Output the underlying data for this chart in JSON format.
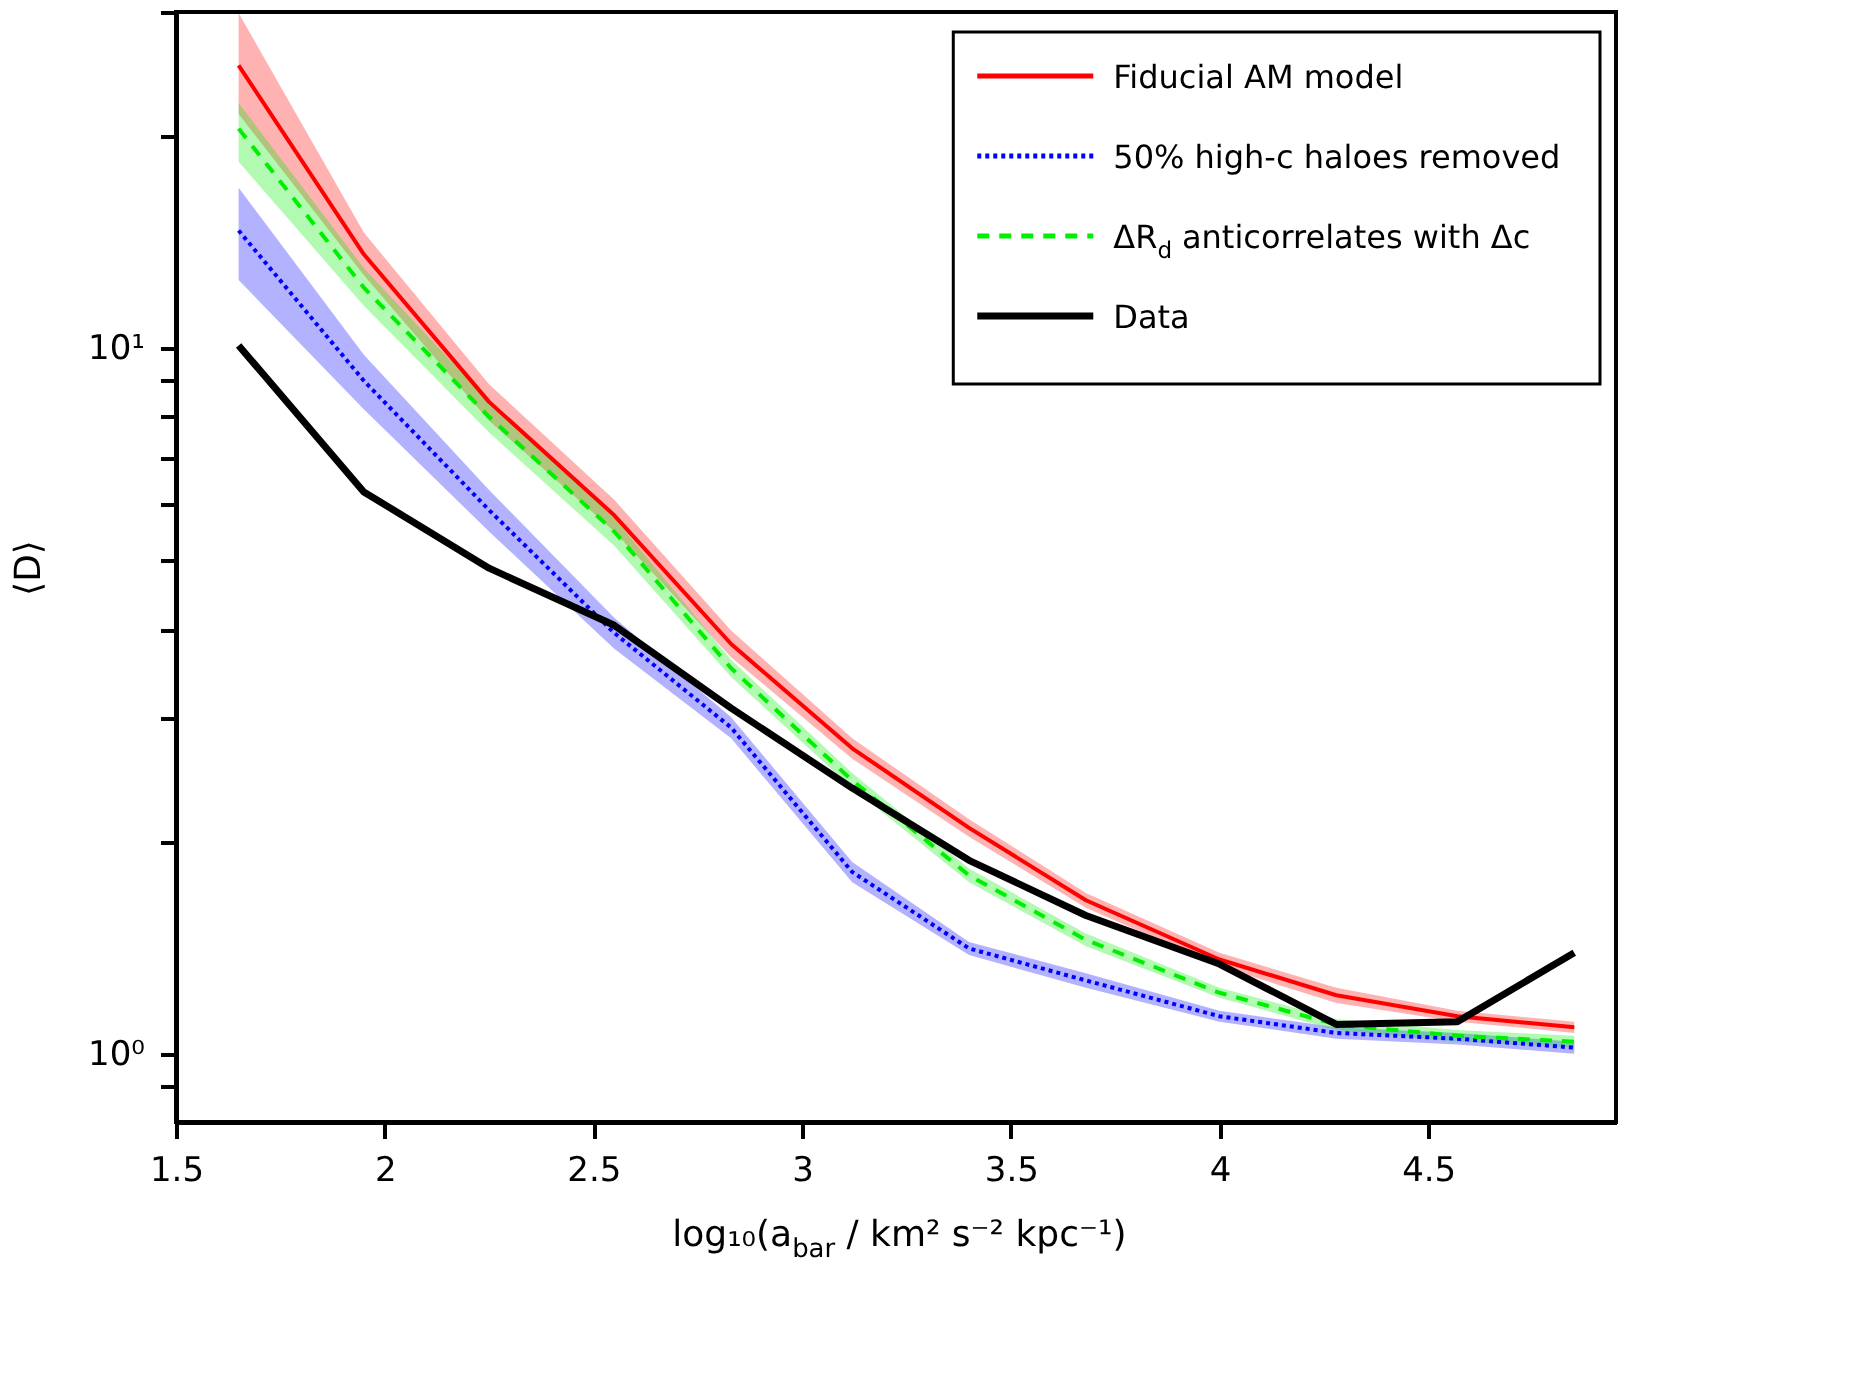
{
  "chart_data": {
    "type": "line",
    "xlabel": "log₁₀(a$_{bar}$ / km² s⁻² kpc⁻¹)",
    "ylabel": "⟨D⟩",
    "x": [
      1.65,
      1.95,
      2.25,
      2.55,
      2.83,
      3.12,
      3.4,
      3.68,
      4.0,
      4.28,
      4.57,
      4.85
    ],
    "series": [
      {
        "name": "Fiducial AM model",
        "color": "#ff0000",
        "line_style": "solid",
        "values": [
          25.2,
          13.6,
          8.4,
          5.8,
          3.81,
          2.71,
          2.09,
          1.65,
          1.36,
          1.21,
          1.13,
          1.09
        ],
        "lower": [
          21.5,
          12.7,
          7.9,
          5.5,
          3.65,
          2.62,
          2.03,
          1.61,
          1.33,
          1.18,
          1.11,
          1.07
        ],
        "upper": [
          29.9,
          14.6,
          8.9,
          6.1,
          3.98,
          2.8,
          2.15,
          1.69,
          1.39,
          1.24,
          1.15,
          1.11
        ]
      },
      {
        "name": "50% high-c haloes removed",
        "color": "#0000ff",
        "line_style": "dotted",
        "values": [
          14.7,
          9.0,
          5.9,
          3.95,
          2.9,
          1.81,
          1.41,
          1.27,
          1.13,
          1.07,
          1.05,
          1.02
        ],
        "lower": [
          12.5,
          8.2,
          5.5,
          3.75,
          2.8,
          1.75,
          1.38,
          1.24,
          1.11,
          1.05,
          1.03,
          1.0
        ],
        "upper": [
          16.9,
          9.8,
          6.3,
          4.15,
          3.0,
          1.87,
          1.44,
          1.3,
          1.15,
          1.09,
          1.07,
          1.04
        ]
      },
      {
        "name": "ΔR$_{d}$ anticorrelates with Δc",
        "color": "#00ee00",
        "line_style": "dashed",
        "values": [
          20.5,
          12.2,
          8.0,
          5.5,
          3.52,
          2.44,
          1.79,
          1.45,
          1.22,
          1.1,
          1.06,
          1.04
        ],
        "lower": [
          18.4,
          11.5,
          7.6,
          5.25,
          3.42,
          2.38,
          1.75,
          1.42,
          1.2,
          1.08,
          1.04,
          1.02
        ],
        "upper": [
          22.3,
          13.0,
          8.4,
          5.75,
          3.62,
          2.5,
          1.83,
          1.48,
          1.24,
          1.12,
          1.08,
          1.06
        ]
      },
      {
        "name": "Data",
        "color": "#000000",
        "line_style": "solid",
        "values": [
          10.1,
          6.26,
          4.88,
          4.05,
          3.09,
          2.38,
          1.88,
          1.57,
          1.34,
          1.1,
          1.11,
          1.39
        ]
      }
    ],
    "xlim": [
      1.5,
      4.95
    ],
    "xticks": [
      1.5,
      2,
      2.5,
      3,
      3.5,
      4,
      4.5
    ],
    "ylim": [
      0.8,
      30
    ],
    "log": true,
    "yticks": [
      {
        "value": 0.9,
        "label": null
      },
      {
        "value": 1,
        "label": "10⁰"
      },
      {
        "value": 2,
        "label": null
      },
      {
        "value": 3,
        "label": null
      },
      {
        "value": 4,
        "label": null
      },
      {
        "value": 5,
        "label": null
      },
      {
        "value": 6,
        "label": null
      },
      {
        "value": 7,
        "label": null
      },
      {
        "value": 8,
        "label": null
      },
      {
        "value": 9,
        "label": null
      },
      {
        "value": 10,
        "label": "10¹"
      },
      {
        "value": 20,
        "label": null
      },
      {
        "value": 30,
        "label": null
      }
    ],
    "grid": false,
    "legend": "top right"
  }
}
